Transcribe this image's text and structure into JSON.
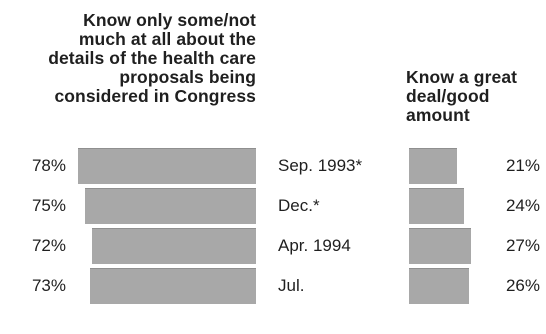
{
  "chart_data": {
    "type": "bar",
    "categories": [
      "Sep. 1993*",
      "Dec.*",
      "Apr. 1994",
      "Jul."
    ],
    "series": [
      {
        "name": "Know only some/not much at all about the details of the health care proposals being considered in Congress",
        "values": [
          78,
          75,
          72,
          73
        ],
        "labels": [
          "78%",
          "75%",
          "72%",
          "73%"
        ]
      },
      {
        "name": "Know a great deal/good amount",
        "values": [
          21,
          24,
          27,
          26
        ],
        "labels": [
          "21%",
          "24%",
          "27%",
          "26%"
        ]
      }
    ],
    "title": "",
    "xlabel": "",
    "ylabel": "",
    "unit": "%",
    "grid": false,
    "legend": "none",
    "colors": {
      "bar_fill": "#a8a8a8",
      "bar_edge": "#8f8f8f",
      "text": "#1f1f1f",
      "background": "#ffffff"
    }
  }
}
